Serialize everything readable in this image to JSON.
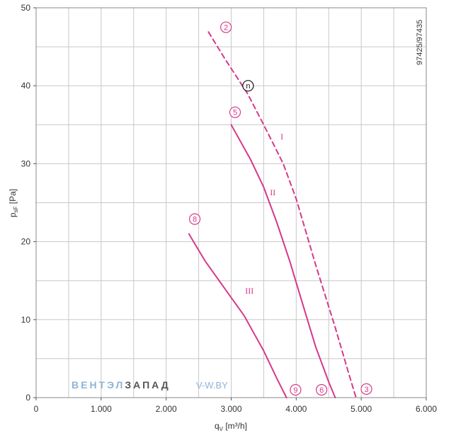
{
  "chart_data": {
    "type": "line",
    "xlabel": "q",
    "xlabel_sub": "V",
    "xlabel_unit": " [m³/h]",
    "ylabel": "p",
    "ylabel_sub": "sF",
    "ylabel_unit": " [Pa]",
    "xlim": [
      0,
      6000
    ],
    "ylim": [
      0,
      50
    ],
    "x_ticks": [
      0,
      1000,
      2000,
      3000,
      4000,
      5000,
      6000
    ],
    "x_tick_labels": [
      "0",
      "1.000",
      "2.000",
      "3.000",
      "4.000",
      "5.000",
      "6.000"
    ],
    "y_ticks": [
      0,
      10,
      20,
      30,
      40,
      50
    ],
    "y_tick_labels": [
      "0",
      "10",
      "20",
      "30",
      "40",
      "50"
    ],
    "grid": true,
    "side_code": "97425/97435",
    "series": [
      {
        "name": "I",
        "style": "dashed",
        "color": "#d6388a",
        "x": [
          2650,
          2900,
          3250,
          3500,
          3800,
          4000,
          4300,
          4600,
          4800,
          4920
        ],
        "y": [
          46.9,
          43.5,
          39,
          35,
          30,
          25.5,
          17,
          9,
          3.3,
          0
        ]
      },
      {
        "name": "II",
        "style": "solid",
        "color": "#d6388a",
        "x": [
          3000,
          3300,
          3500,
          3700,
          3900,
          4100,
          4300,
          4500,
          4600
        ],
        "y": [
          35,
          30.5,
          27,
          22.5,
          17.5,
          12,
          6.5,
          2,
          0
        ]
      },
      {
        "name": "III",
        "style": "solid",
        "color": "#d6388a",
        "x": [
          2350,
          2600,
          2900,
          3200,
          3500,
          3700,
          3850
        ],
        "y": [
          21,
          17.5,
          14,
          10.5,
          6,
          2.5,
          0
        ]
      }
    ],
    "curve_labels": [
      {
        "text": "I",
        "x": 3780,
        "y": 33.5
      },
      {
        "text": "II",
        "x": 3640,
        "y": 26.3
      },
      {
        "text": "III",
        "x": 3280,
        "y": 13.7
      }
    ],
    "point_markers": [
      {
        "text": "2",
        "x": 2920,
        "y": 47.5,
        "color": "#d6388a"
      },
      {
        "text": "n",
        "x": 3260,
        "y": 40.0,
        "color": "#111111"
      },
      {
        "text": "5",
        "x": 3060,
        "y": 36.6,
        "color": "#d6388a"
      },
      {
        "text": "8",
        "x": 2440,
        "y": 22.9,
        "color": "#d6388a"
      },
      {
        "text": "9",
        "x": 3990,
        "y": 1.0,
        "color": "#d6388a"
      },
      {
        "text": "6",
        "x": 4390,
        "y": 1.0,
        "color": "#d6388a"
      },
      {
        "text": "3",
        "x": 5080,
        "y": 1.1,
        "color": "#d6388a"
      }
    ],
    "watermark": {
      "part1": "ВЕНТЭЛ",
      "part2": "ЗАПАД",
      "part3": "V-W.BY",
      "color1": "#8fb4d6",
      "color2": "#555555",
      "color3": "#8fb4d6"
    }
  }
}
